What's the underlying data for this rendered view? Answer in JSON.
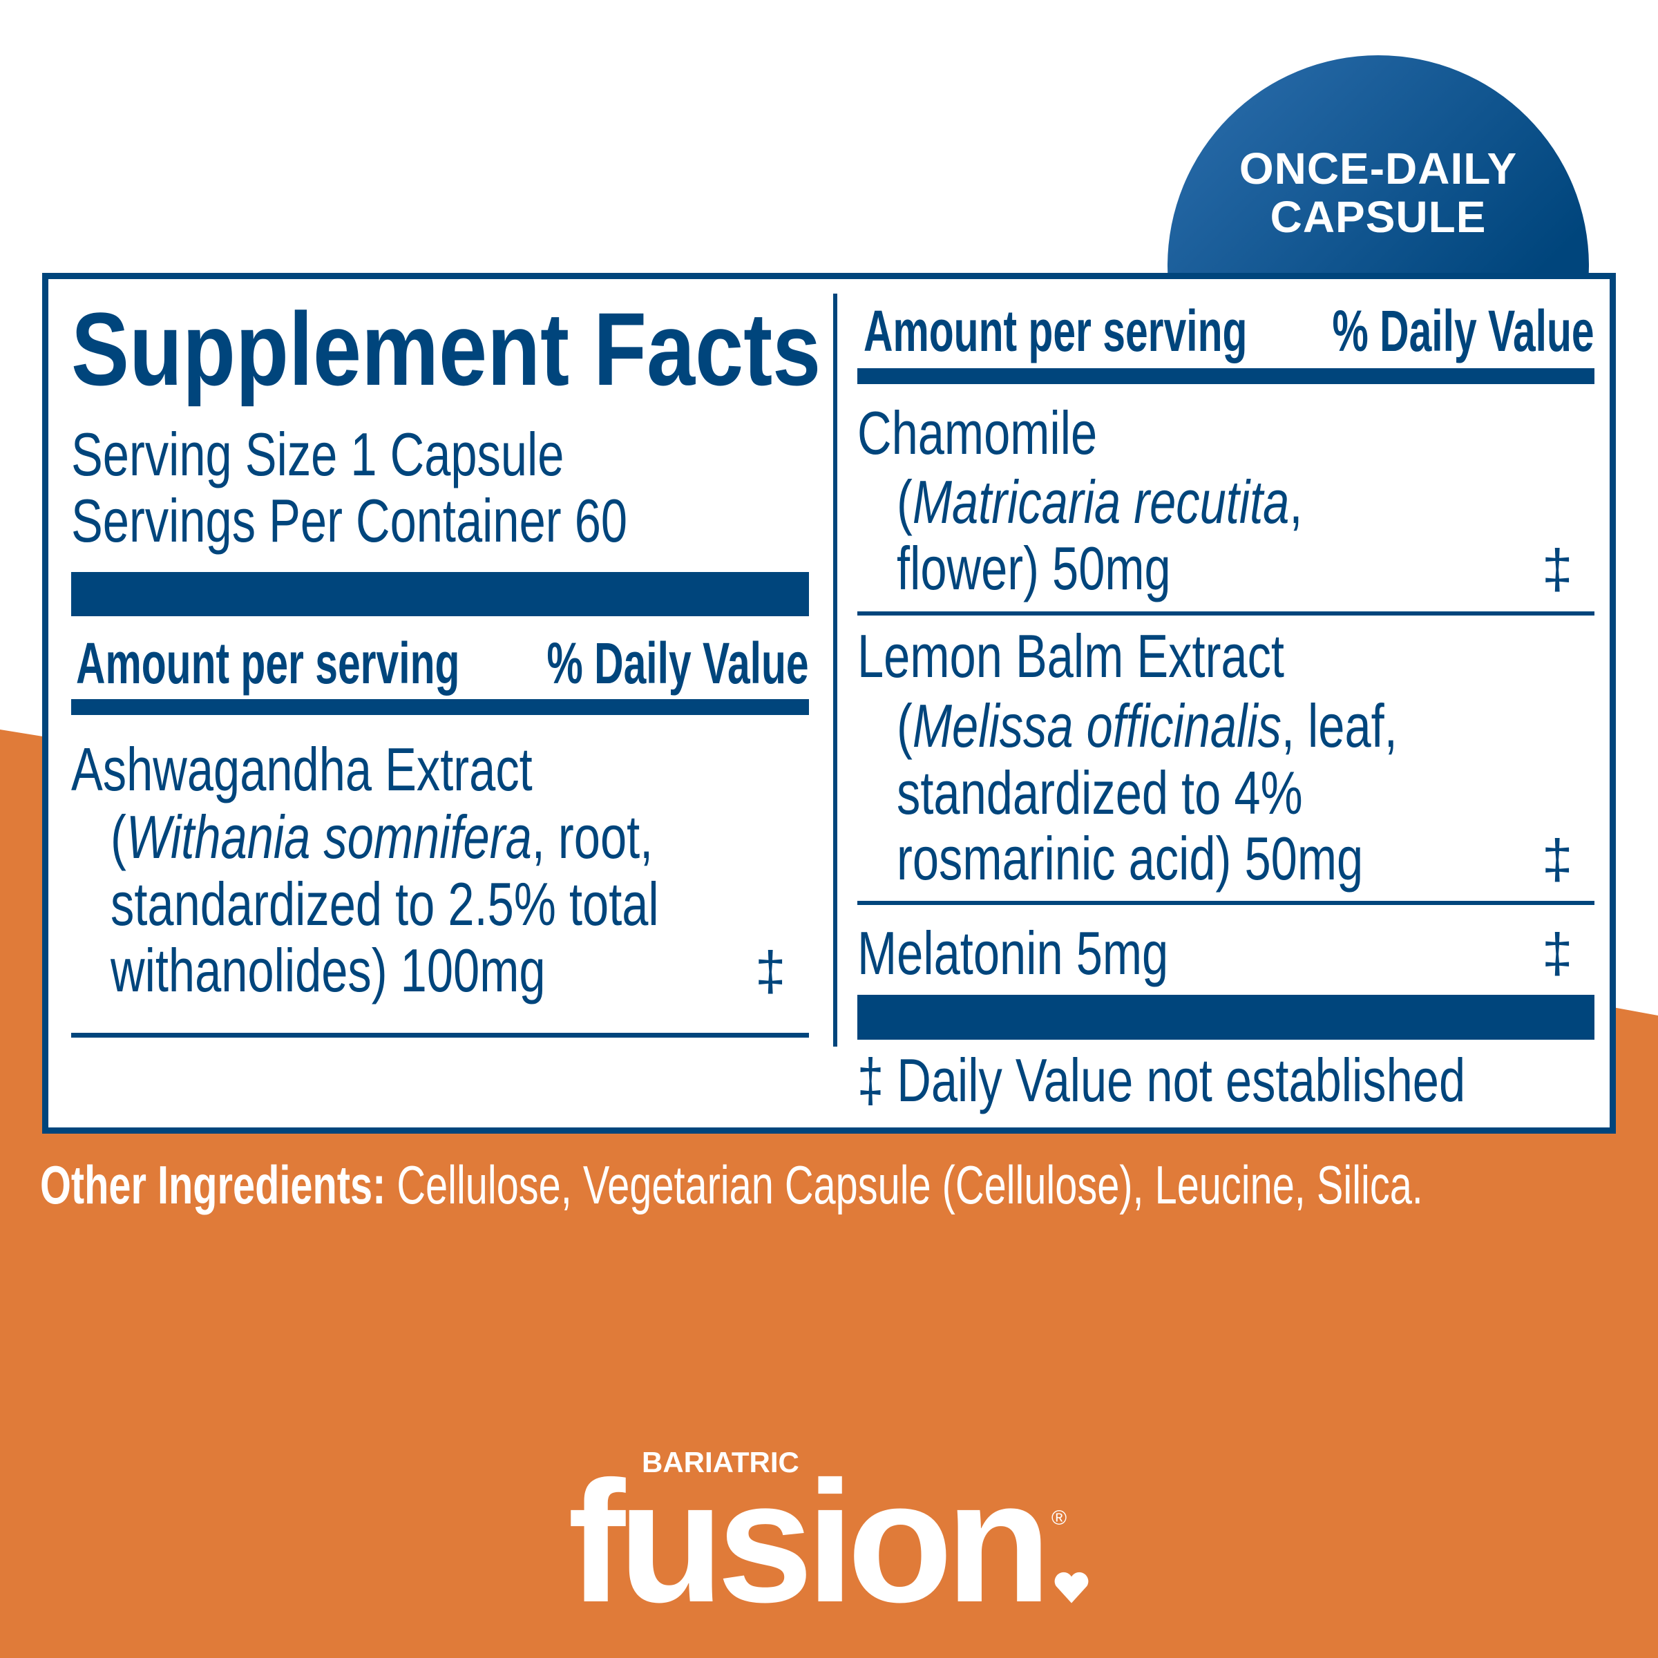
{
  "colors": {
    "brand_blue": "#00457c",
    "orange": "#e07b39",
    "background": "#ffffff"
  },
  "badge": {
    "line1": "ONCE-DAILY",
    "line2": "CAPSULE"
  },
  "facts": {
    "title": "Supplement Facts",
    "serving_size": "Serving Size 1 Capsule",
    "servings_per_container": "Servings Per Container 60",
    "header_amount": "Amount per serving",
    "header_dv": "% Daily Value",
    "dagger": "‡",
    "ingredients": [
      {
        "name": "Ashwagandha Extract",
        "paren_open": "(",
        "latin": "Withania somnifera",
        "detail1": ", root,",
        "detail2": "standardized to 2.5% total",
        "detail3": "withanolides) 100mg",
        "dv": "‡"
      },
      {
        "name": "Chamomile",
        "paren_open": "(",
        "latin": "Matricaria recutita",
        "detail1": ",",
        "detail2": "flower) 50mg",
        "dv": "‡"
      },
      {
        "name": "Lemon Balm Extract",
        "paren_open": "(",
        "latin": "Melissa officinalis",
        "detail1": ", leaf,",
        "detail2": "standardized to 4%",
        "detail3": "rosmarinic acid) 50mg",
        "dv": "‡"
      },
      {
        "name": "Melatonin 5mg",
        "dv": "‡"
      }
    ],
    "footnote": "‡ Daily Value not established"
  },
  "other_ingredients": {
    "label": "Other Ingredients:",
    "value": " Cellulose, Vegetarian Capsule (Cellulose), Leucine, Silica."
  },
  "logo": {
    "small": "BARIATRIC",
    "main": "fusion",
    "reg": "®"
  }
}
